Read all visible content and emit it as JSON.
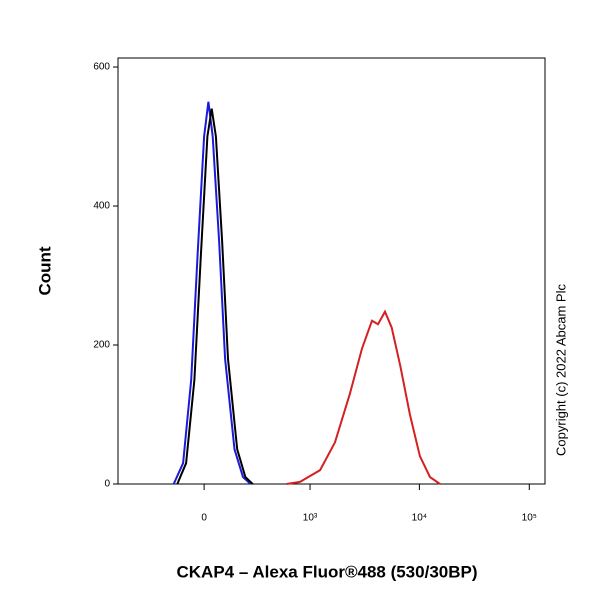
{
  "chart_data": {
    "type": "line",
    "xlabel": "CKAP4 – Alexa Fluor®488 (530/30BP)",
    "ylabel": "Count",
    "annotation": "Copyright (c) 2022 Abcam Plc",
    "xscale": "biexponential",
    "xlim": [
      -650,
      139000
    ],
    "xticks": [
      0,
      {
        "value": 1000,
        "label": "10³"
      },
      {
        "value": 10000,
        "label": "10⁴"
      },
      {
        "value": 100000,
        "label": "10⁵"
      }
    ],
    "ylim": [
      0,
      613
    ],
    "yticks": [
      0,
      200,
      400,
      600
    ],
    "series": [
      {
        "color": "#1a1adb",
        "x": [
          -150,
          -100,
          -60,
          -30,
          0,
          20,
          40,
          70,
          100,
          150,
          200,
          250
        ],
        "values": [
          0,
          30,
          150,
          330,
          500,
          550,
          500,
          350,
          180,
          50,
          10,
          0
        ]
      },
      {
        "color": "#000000",
        "x": [
          -130,
          -85,
          -45,
          -15,
          15,
          35,
          55,
          85,
          115,
          165,
          215,
          265
        ],
        "values": [
          0,
          30,
          150,
          330,
          500,
          540,
          500,
          350,
          180,
          50,
          10,
          0
        ]
      },
      {
        "color": "#d42020",
        "x": [
          600,
          805,
          1240,
          1700,
          2330,
          3000,
          3700,
          4200,
          4860,
          5600,
          6700,
          8200,
          10100,
          12500,
          15400
        ],
        "values": [
          0,
          3,
          20,
          60,
          130,
          195,
          235,
          230,
          248,
          225,
          170,
          100,
          40,
          10,
          0
        ]
      }
    ]
  }
}
